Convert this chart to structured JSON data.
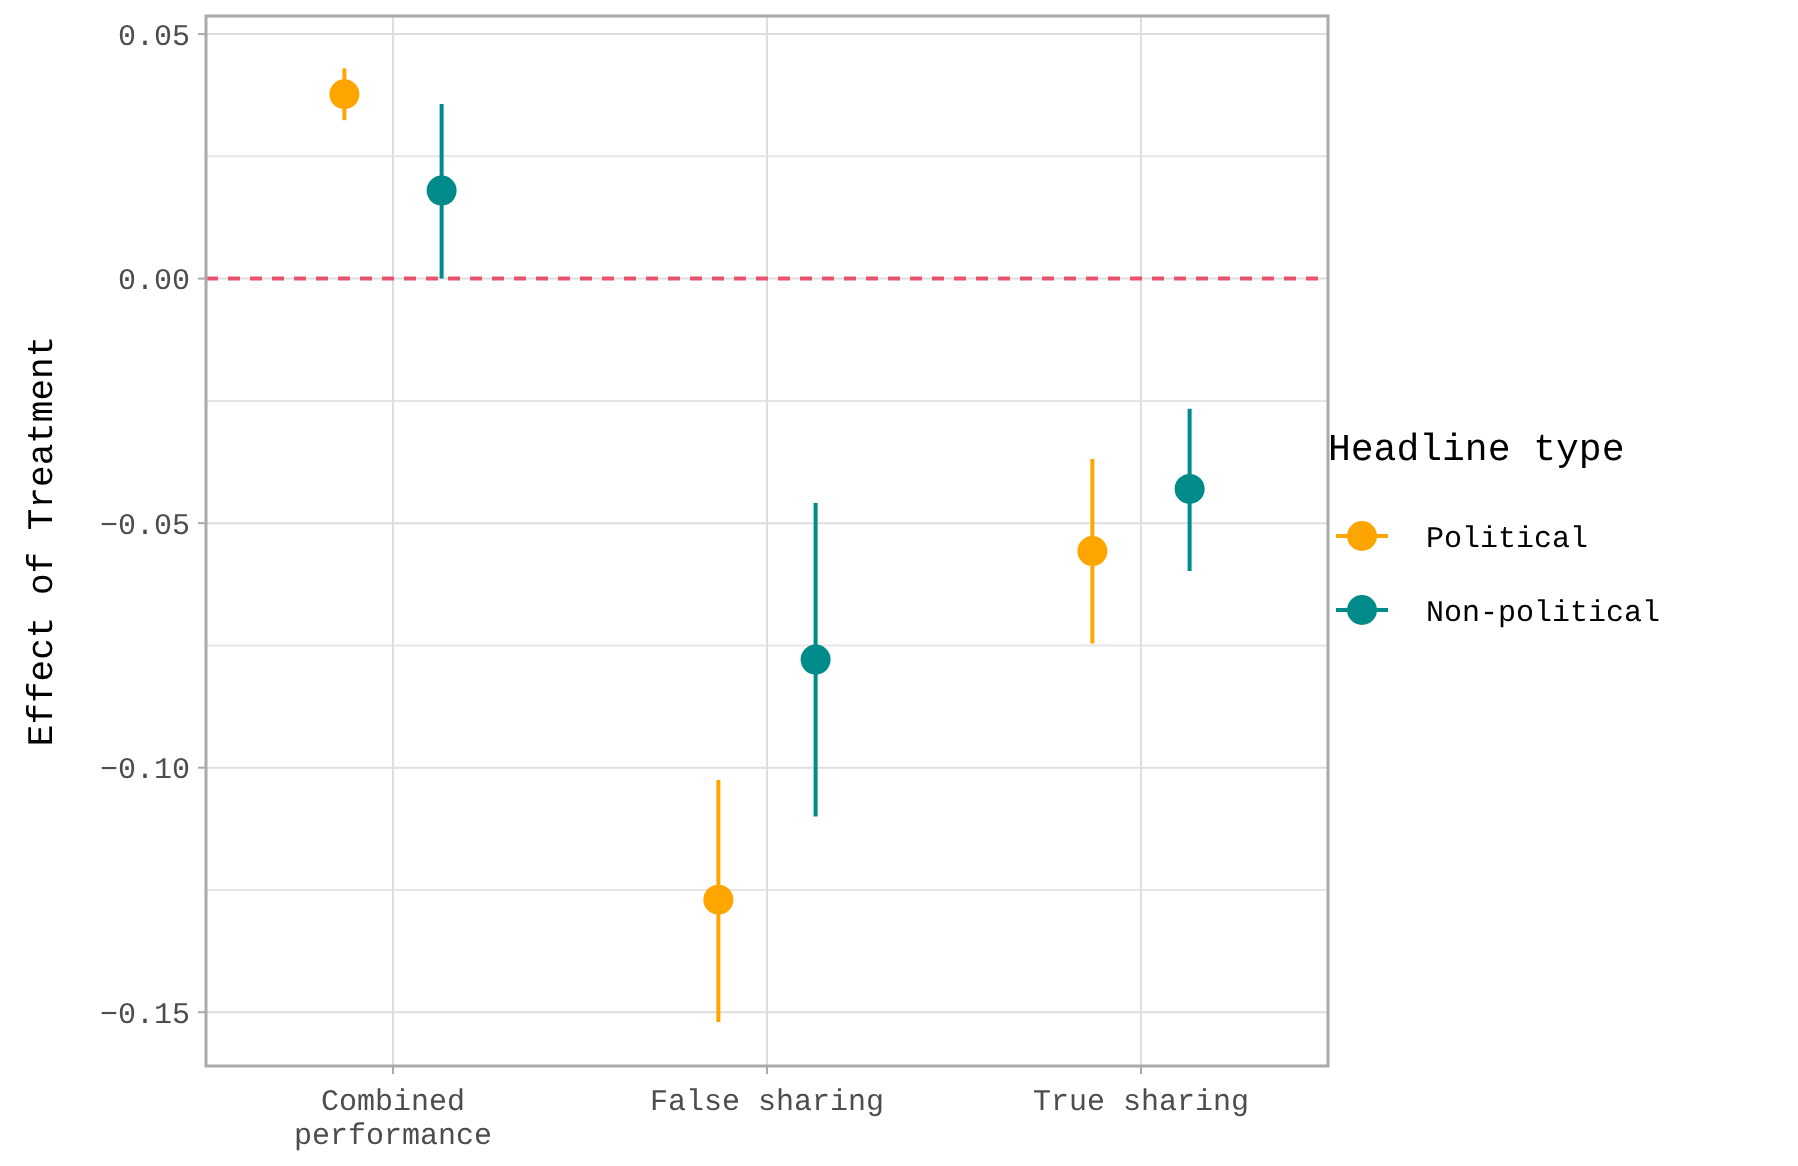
{
  "chart_data": {
    "type": "scatter",
    "ylabel": "Effect of Treatment",
    "legend_title": "Headline type",
    "categories": [
      "Combined\nperformance",
      "False sharing",
      "True sharing"
    ],
    "series": [
      {
        "name": "Political",
        "color": "#ffa500",
        "values": [
          0.0377,
          -0.127,
          -0.0557
        ],
        "errors": [
          [
            0.0324,
            0.043
          ],
          [
            -0.152,
            -0.1025
          ],
          [
            -0.0746,
            -0.0369
          ]
        ]
      },
      {
        "name": "Non-political",
        "color": "#008b8b",
        "values": [
          0.018,
          -0.0779,
          -0.043
        ],
        "errors": [
          [
            0,
            0.0357
          ],
          [
            -0.11,
            -0.0459
          ],
          [
            -0.0598,
            -0.0266
          ]
        ]
      }
    ],
    "ylim": [
      -0.161,
      0.0537
    ],
    "yticks": [
      {
        "value": -0.15,
        "label": "−0.15"
      },
      {
        "value": -0.1,
        "label": "−0.10"
      },
      {
        "value": -0.05,
        "label": "−0.05"
      },
      {
        "value": 0,
        "label": "0.00"
      },
      {
        "value": 0.05,
        "label": "0.05"
      }
    ],
    "ref_lines": [
      {
        "axis": "y",
        "value": 0,
        "color": "#e8546f",
        "line_style": "dashed"
      }
    ],
    "grid": true,
    "legend": "right",
    "marker": "circle"
  }
}
